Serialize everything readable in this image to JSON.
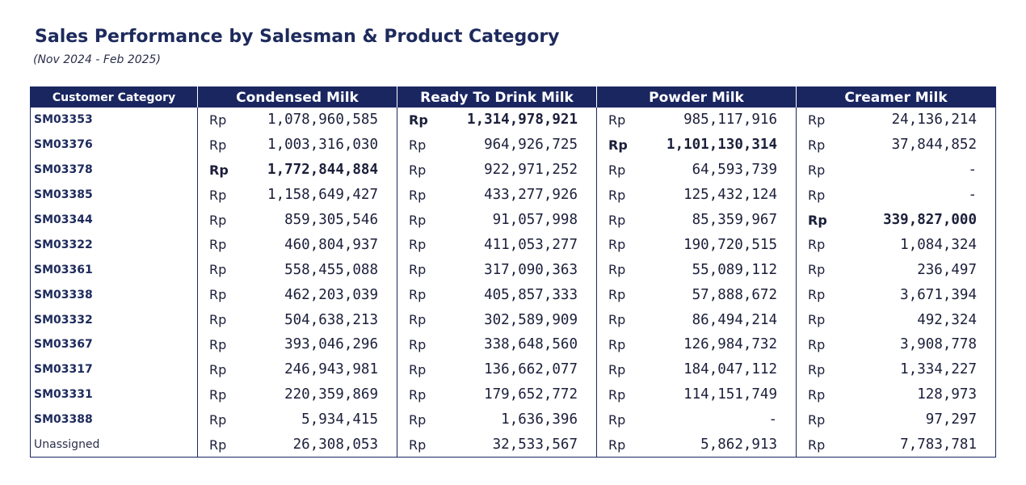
{
  "report": {
    "title": "Sales Performance by Salesman & Product Category",
    "subtitle": "(Nov 2024 - Feb 2025)"
  },
  "table": {
    "headers": [
      "Customer Category",
      "Condensed Milk",
      "Ready To Drink Milk",
      "Powder Milk",
      "Creamer Milk"
    ],
    "currency": "Rp",
    "rows": [
      {
        "name": "SM03353",
        "values": [
          "1,078,960,585",
          "1,314,978,921",
          "985,117,916",
          "24,136,214"
        ],
        "bold": [
          false,
          true,
          false,
          false
        ]
      },
      {
        "name": "SM03376",
        "values": [
          "1,003,316,030",
          "964,926,725",
          "1,101,130,314",
          "37,844,852"
        ],
        "bold": [
          false,
          false,
          true,
          false
        ]
      },
      {
        "name": "SM03378",
        "values": [
          "1,772,844,884",
          "922,971,252",
          "64,593,739",
          "-"
        ],
        "bold": [
          true,
          false,
          false,
          false
        ]
      },
      {
        "name": "SM03385",
        "values": [
          "1,158,649,427",
          "433,277,926",
          "125,432,124",
          "-"
        ],
        "bold": [
          false,
          false,
          false,
          false
        ]
      },
      {
        "name": "SM03344",
        "values": [
          "859,305,546",
          "91,057,998",
          "85,359,967",
          "339,827,000"
        ],
        "bold": [
          false,
          false,
          false,
          true
        ]
      },
      {
        "name": "SM03322",
        "values": [
          "460,804,937",
          "411,053,277",
          "190,720,515",
          "1,084,324"
        ],
        "bold": [
          false,
          false,
          false,
          false
        ]
      },
      {
        "name": "SM03361",
        "values": [
          "558,455,088",
          "317,090,363",
          "55,089,112",
          "236,497"
        ],
        "bold": [
          false,
          false,
          false,
          false
        ]
      },
      {
        "name": "SM03338",
        "values": [
          "462,203,039",
          "405,857,333",
          "57,888,672",
          "3,671,394"
        ],
        "bold": [
          false,
          false,
          false,
          false
        ]
      },
      {
        "name": "SM03332",
        "values": [
          "504,638,213",
          "302,589,909",
          "86,494,214",
          "492,324"
        ],
        "bold": [
          false,
          false,
          false,
          false
        ]
      },
      {
        "name": "SM03367",
        "values": [
          "393,046,296",
          "338,648,560",
          "126,984,732",
          "3,908,778"
        ],
        "bold": [
          false,
          false,
          false,
          false
        ]
      },
      {
        "name": "SM03317",
        "values": [
          "246,943,981",
          "136,662,077",
          "184,047,112",
          "1,334,227"
        ],
        "bold": [
          false,
          false,
          false,
          false
        ]
      },
      {
        "name": "SM03331",
        "values": [
          "220,359,869",
          "179,652,772",
          "114,151,749",
          "128,973"
        ],
        "bold": [
          false,
          false,
          false,
          false
        ]
      },
      {
        "name": "SM03388",
        "values": [
          "5,934,415",
          "1,636,396",
          "-",
          "97,297"
        ],
        "bold": [
          false,
          false,
          false,
          false
        ]
      },
      {
        "name": "Unassigned",
        "values": [
          "26,308,053",
          "32,533,567",
          "5,862,913",
          "7,783,781"
        ],
        "bold": [
          false,
          false,
          false,
          false
        ],
        "plain": true
      }
    ]
  }
}
